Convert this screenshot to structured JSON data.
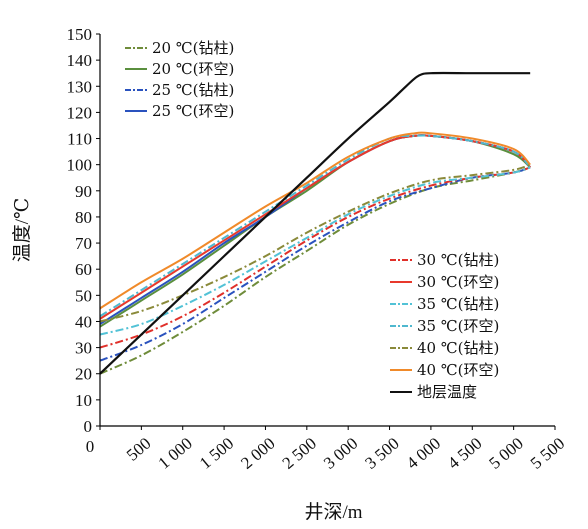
{
  "chart_data": {
    "type": "line",
    "xlabel": "井深/m",
    "ylabel": "温度/℃",
    "xlim": [
      0,
      5500
    ],
    "ylim": [
      0,
      150
    ],
    "x_tick_labels": [
      "0",
      "500",
      "1 000",
      "1 500",
      "2 000",
      "2 500",
      "3 000",
      "3 500",
      "4 000",
      "4 500",
      "5 000",
      "5 500"
    ],
    "y_tick_labels": [
      "0",
      "10",
      "20",
      "30",
      "40",
      "50",
      "60",
      "70",
      "80",
      "90",
      "100",
      "110",
      "120",
      "130",
      "140",
      "150"
    ],
    "legend_groups": [
      {
        "position": "top-left",
        "items": [
          0,
          1,
          2,
          3
        ]
      },
      {
        "position": "right-middle",
        "items": [
          4,
          5,
          6,
          7,
          8,
          9,
          10
        ]
      }
    ],
    "series": [
      {
        "name": "20 ℃(钻柱)",
        "color": "#6f8c3a",
        "dash": "dashdot",
        "x": [
          0,
          500,
          1000,
          1500,
          2000,
          2500,
          3000,
          3500,
          4000,
          4500,
          5000,
          5200
        ],
        "y": [
          20,
          27,
          36,
          46,
          57,
          67,
          77,
          85,
          91,
          94,
          97,
          99
        ]
      },
      {
        "name": "20 ℃(环空)",
        "color": "#5a8f3e",
        "dash": "solid",
        "x": [
          0,
          500,
          1000,
          1500,
          2000,
          2500,
          3000,
          3500,
          3800,
          4000,
          4500,
          5000,
          5200
        ],
        "y": [
          38,
          48,
          58,
          69,
          80,
          90,
          101,
          109,
          111,
          111,
          109,
          104,
          99
        ]
      },
      {
        "name": "25 ℃(钻柱)",
        "color": "#2a52be",
        "dash": "dashdot",
        "x": [
          0,
          500,
          1000,
          1500,
          2000,
          2500,
          3000,
          3500,
          4000,
          4500,
          5000,
          5200
        ],
        "y": [
          25,
          31,
          39,
          49,
          59,
          69,
          78,
          86,
          91,
          95,
          97,
          99
        ]
      },
      {
        "name": "25 ℃(环空)",
        "color": "#2a52be",
        "dash": "solid",
        "x": [
          0,
          500,
          1000,
          1500,
          2000,
          2500,
          3000,
          3500,
          3800,
          4000,
          4500,
          5000,
          5200
        ],
        "y": [
          39,
          49,
          59,
          70,
          80,
          91,
          101,
          109,
          111,
          111,
          109,
          105,
          99
        ]
      },
      {
        "name": "30 ℃(钻柱)",
        "color": "#e0302a",
        "dash": "dashdot",
        "x": [
          0,
          500,
          1000,
          1500,
          2000,
          2500,
          3000,
          3500,
          4000,
          4500,
          5000,
          5200
        ],
        "y": [
          30,
          35,
          42,
          51,
          61,
          71,
          80,
          87,
          92,
          95,
          97,
          99
        ]
      },
      {
        "name": "30 ℃(环空)",
        "color": "#e8392c",
        "dash": "solid",
        "x": [
          0,
          500,
          1000,
          1500,
          2000,
          2500,
          3000,
          3500,
          3800,
          4000,
          4500,
          5000,
          5200
        ],
        "y": [
          41,
          51,
          61,
          71,
          81,
          91,
          101,
          109,
          111,
          111,
          109,
          105,
          99
        ]
      },
      {
        "name": "35 ℃(钻柱)",
        "color": "#52c2d6",
        "dash": "dashdot",
        "x": [
          0,
          500,
          1000,
          1500,
          2000,
          2500,
          3000,
          3500,
          4000,
          4500,
          5000,
          5200
        ],
        "y": [
          35,
          39,
          46,
          54,
          63,
          72,
          81,
          88,
          93,
          95,
          97,
          99
        ]
      },
      {
        "name": "35 ℃(环空)",
        "color": "#4fb8cf",
        "dash": "dashdot",
        "x": [
          0,
          500,
          1000,
          1500,
          2000,
          2500,
          3000,
          3500,
          3800,
          4000,
          4500,
          5000,
          5200
        ],
        "y": [
          42,
          52,
          62,
          72,
          82,
          92,
          102,
          110,
          111,
          111,
          109,
          105,
          99
        ]
      },
      {
        "name": "40 ℃(钻柱)",
        "color": "#8a8a3a",
        "dash": "dashdot",
        "x": [
          0,
          500,
          1000,
          1500,
          2000,
          2500,
          3000,
          3500,
          4000,
          4500,
          5000,
          5200
        ],
        "y": [
          40,
          44,
          50,
          57,
          65,
          74,
          82,
          89,
          94,
          96,
          98,
          100
        ]
      },
      {
        "name": "40 ℃(环空)",
        "color": "#f08a2a",
        "dash": "solid",
        "x": [
          0,
          500,
          1000,
          1500,
          2000,
          2500,
          3000,
          3500,
          3800,
          4000,
          4500,
          5000,
          5200
        ],
        "y": [
          45,
          55,
          64,
          74,
          84,
          93,
          103,
          110,
          112,
          112,
          110,
          106,
          100
        ]
      },
      {
        "name": "地层温度",
        "color": "#111111",
        "dash": "solid",
        "x": [
          0,
          500,
          1000,
          1500,
          2000,
          2500,
          3000,
          3500,
          3700,
          3850,
          4000,
          4500,
          5000,
          5200
        ],
        "y": [
          20,
          35,
          50,
          65,
          80,
          95,
          110,
          124,
          130,
          134,
          135,
          135,
          135,
          135
        ]
      }
    ]
  }
}
